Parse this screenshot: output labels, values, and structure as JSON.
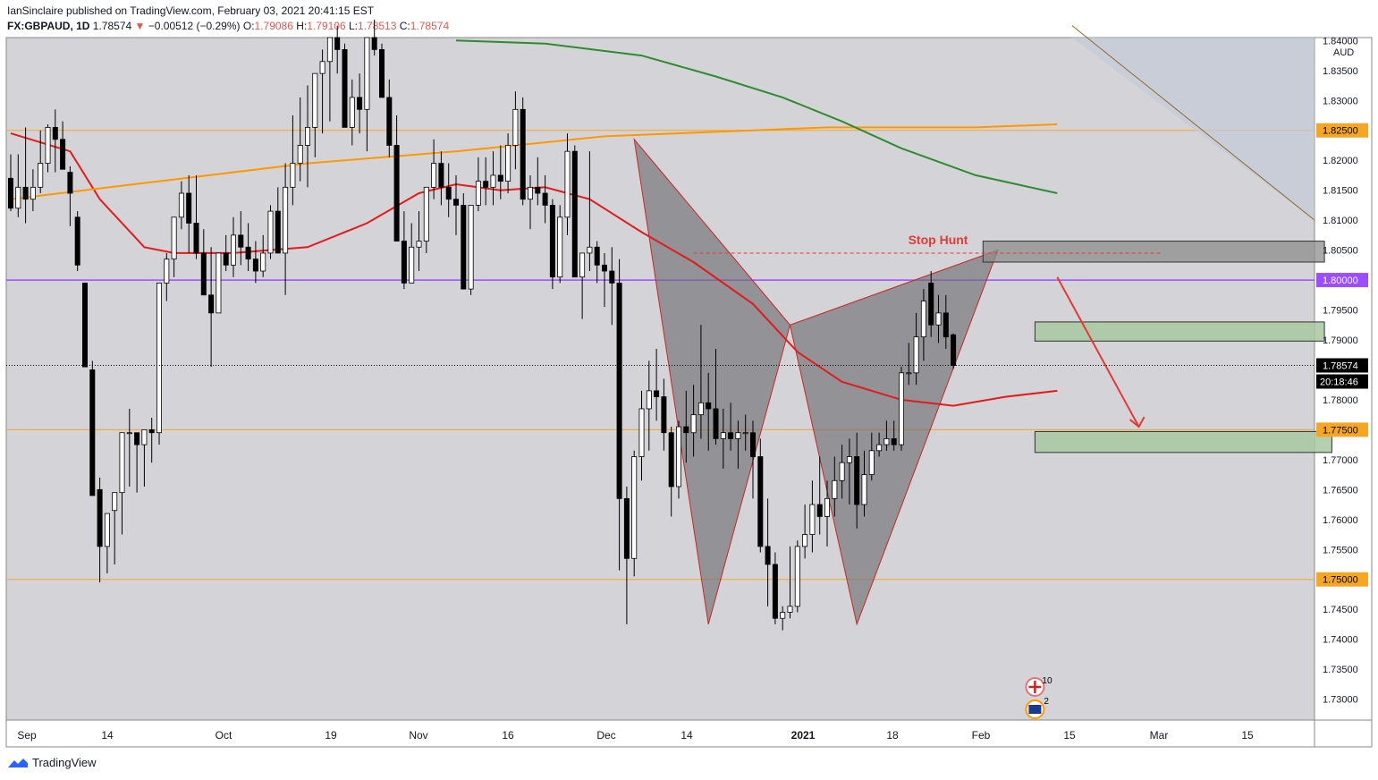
{
  "header": {
    "publisher": "IanSinclaire published on TradingView.com, February 03, 2021 20:41:15 EST",
    "symbol": "FX:GBPAUD, 1D",
    "last": "1.78574",
    "arrow": "▼",
    "change": "−0.00512 (−0.29%)",
    "ohlc": {
      "o_label": "O:",
      "o": "1.79086",
      "h_label": "H:",
      "h": "1.79106",
      "l_label": "L:",
      "l": "1.78513",
      "c_label": "C:",
      "c": "1.78574"
    }
  },
  "footer": {
    "brand": "TradingView"
  },
  "colors": {
    "background": "#d4d4d8",
    "up_candle": "#ffffff",
    "down_candle": "#000000",
    "ma_red": "#e31b1b",
    "ma_orange": "#ff9800",
    "ma_green": "#2e8b2e",
    "level_orange": "#f5a623",
    "level_purple": "#9c4dff",
    "pattern_fill": "#6e6e74",
    "zone_green": "#a8c8a0",
    "zone_grey": "#8e8e8e"
  },
  "chart_data": {
    "type": "candlestick",
    "symbol": "FX:GBPAUD",
    "timeframe": "1D",
    "currency_label": "AUD",
    "x_ticks": [
      "Sep",
      "14",
      "Oct",
      "19",
      "Nov",
      "16",
      "Dec",
      "14",
      "2021",
      "18",
      "Feb",
      "15",
      "Mar",
      "15"
    ],
    "y_ticks": [
      "1.84000",
      "1.83500",
      "1.83000",
      "1.82500",
      "1.82000",
      "1.81500",
      "1.81000",
      "1.80500",
      "1.80000",
      "1.79500",
      "1.79000",
      "1.78574",
      "1.78000",
      "1.77500",
      "1.77000",
      "1.76500",
      "1.76000",
      "1.75500",
      "1.75000",
      "1.74500",
      "1.74000",
      "1.73500",
      "1.73000"
    ],
    "y_range": [
      1.7265,
      1.8405
    ],
    "highlighted_levels": [
      {
        "label": "1.82500",
        "value": 1.825,
        "color": "orange"
      },
      {
        "label": "1.80000",
        "value": 1.8,
        "color": "purple"
      },
      {
        "label": "1.77500",
        "value": 1.775,
        "color": "orange"
      },
      {
        "label": "1.75000",
        "value": 1.75,
        "color": "orange"
      }
    ],
    "current_price": "1.78574",
    "countdown": "20:18:46",
    "annotation": "Stop Hunt",
    "candles_ohlc": [
      [
        1.817,
        1.821,
        1.8115,
        1.812
      ],
      [
        1.812,
        1.821,
        1.8105,
        1.8155
      ],
      [
        1.8155,
        1.8255,
        1.8095,
        1.8135
      ],
      [
        1.8135,
        1.8185,
        1.8115,
        1.8155
      ],
      [
        1.8155,
        1.825,
        1.8145,
        1.8195
      ],
      [
        1.8195,
        1.826,
        1.818,
        1.8255
      ],
      [
        1.8255,
        1.8285,
        1.818,
        1.8235
      ],
      [
        1.8235,
        1.8265,
        1.8185,
        1.8185
      ],
      [
        1.818,
        1.819,
        1.809,
        1.8145
      ],
      [
        1.8105,
        1.8115,
        1.8015,
        1.8025
      ],
      [
        1.7995,
        1.7945,
        1.7855,
        1.7855
      ],
      [
        1.785,
        1.7865,
        1.7735,
        1.764
      ],
      [
        1.765,
        1.767,
        1.7495,
        1.7555
      ],
      [
        1.7555,
        1.7605,
        1.751,
        1.761
      ],
      [
        1.7615,
        1.7645,
        1.7525,
        1.7645
      ],
      [
        1.7645,
        1.7705,
        1.7575,
        1.7745
      ],
      [
        1.7745,
        1.7785,
        1.7655,
        1.7745
      ],
      [
        1.7745,
        1.7735,
        1.7645,
        1.7725
      ],
      [
        1.7725,
        1.7735,
        1.7655,
        1.775
      ],
      [
        1.775,
        1.777,
        1.7695,
        1.7745
      ],
      [
        1.7745,
        1.7765,
        1.7725,
        1.7995
      ],
      [
        1.7995,
        1.8045,
        1.7965,
        1.8035
      ],
      [
        1.8035,
        1.8095,
        1.8005,
        1.8105
      ],
      [
        1.8105,
        1.8165,
        1.8085,
        1.8145
      ],
      [
        1.8145,
        1.8175,
        1.8045,
        1.8095
      ],
      [
        1.8095,
        1.8175,
        1.8035,
        1.8045
      ],
      [
        1.8045,
        1.8085,
        1.7975,
        1.7975
      ],
      [
        1.7975,
        1.8055,
        1.7855,
        1.7945
      ],
      [
        1.7945,
        1.8045,
        1.7945,
        1.8045
      ],
      [
        1.8045,
        1.8075,
        1.8015,
        1.8025
      ],
      [
        1.8025,
        1.8105,
        1.8005,
        1.8075
      ],
      [
        1.8075,
        1.8115,
        1.8025,
        1.8055
      ],
      [
        1.8055,
        1.8095,
        1.8015,
        1.8035
      ],
      [
        1.8035,
        1.8065,
        1.7995,
        1.8015
      ],
      [
        1.8015,
        1.8075,
        1.8005,
        1.8045
      ],
      [
        1.8045,
        1.8125,
        1.8035,
        1.8115
      ],
      [
        1.8115,
        1.8155,
        1.8045,
        1.8045
      ],
      [
        1.8045,
        1.8195,
        1.7975,
        1.8155
      ],
      [
        1.8155,
        1.8275,
        1.8125,
        1.8195
      ],
      [
        1.8195,
        1.8305,
        1.8165,
        1.8225
      ],
      [
        1.8225,
        1.8325,
        1.8155,
        1.8255
      ],
      [
        1.8255,
        1.8345,
        1.8205,
        1.8345
      ],
      [
        1.8345,
        1.8385,
        1.8245,
        1.8365
      ],
      [
        1.8365,
        1.8405,
        1.8265,
        1.8405
      ],
      [
        1.8405,
        1.8425,
        1.8345,
        1.8385
      ],
      [
        1.8385,
        1.8395,
        1.8255,
        1.8255
      ],
      [
        1.8255,
        1.8335,
        1.8225,
        1.8305
      ],
      [
        1.8305,
        1.8345,
        1.8245,
        1.8285
      ],
      [
        1.8285,
        1.8405,
        1.8215,
        1.8405
      ],
      [
        1.8405,
        1.8435,
        1.8375,
        1.8385
      ],
      [
        1.8385,
        1.8395,
        1.8305,
        1.8305
      ],
      [
        1.8305,
        1.8335,
        1.8205,
        1.8225
      ],
      [
        1.8225,
        1.8275,
        1.8065,
        1.8065
      ],
      [
        1.8065,
        1.8115,
        1.7985,
        1.7995
      ],
      [
        1.7995,
        1.8095,
        1.7995,
        1.8055
      ],
      [
        1.8055,
        1.8115,
        1.8015,
        1.8065
      ],
      [
        1.8065,
        1.8135,
        1.8045,
        1.8155
      ],
      [
        1.8155,
        1.8235,
        1.8135,
        1.8195
      ],
      [
        1.8195,
        1.8215,
        1.8125,
        1.8155
      ],
      [
        1.8155,
        1.8195,
        1.8105,
        1.8135
      ],
      [
        1.8135,
        1.8175,
        1.8075,
        1.8125
      ],
      [
        1.8125,
        1.8145,
        1.7985,
        1.7985
      ],
      [
        1.7985,
        1.8065,
        1.7975,
        1.8125
      ],
      [
        1.8125,
        1.8205,
        1.8115,
        1.8165
      ],
      [
        1.8165,
        1.8205,
        1.8125,
        1.8155
      ],
      [
        1.8155,
        1.8215,
        1.8125,
        1.8175
      ],
      [
        1.8175,
        1.8225,
        1.8135,
        1.8165
      ],
      [
        1.8165,
        1.8245,
        1.8145,
        1.8225
      ],
      [
        1.8225,
        1.8315,
        1.8185,
        1.8285
      ],
      [
        1.8285,
        1.8305,
        1.8125,
        1.8135
      ],
      [
        1.8135,
        1.8175,
        1.8085,
        1.8155
      ],
      [
        1.8155,
        1.8205,
        1.8125,
        1.8145
      ],
      [
        1.8145,
        1.8175,
        1.8095,
        1.8125
      ],
      [
        1.8125,
        1.8135,
        1.7985,
        1.8005
      ],
      [
        1.8005,
        1.8125,
        1.7995,
        1.8105
      ],
      [
        1.8105,
        1.8245,
        1.8075,
        1.8215
      ],
      [
        1.8215,
        1.8225,
        1.8005,
        1.8005
      ],
      [
        1.8005,
        1.8045,
        1.7935,
        1.8045
      ],
      [
        1.8045,
        1.8215,
        1.8015,
        1.8055
      ],
      [
        1.8055,
        1.8065,
        1.7995,
        1.8025
      ],
      [
        1.8025,
        1.8045,
        1.7955,
        1.8015
      ],
      [
        1.8015,
        1.8055,
        1.7925,
        1.7995
      ],
      [
        1.7995,
        1.8035,
        1.7515,
        1.7635
      ],
      [
        1.7635,
        1.7655,
        1.7425,
        1.7535
      ],
      [
        1.7535,
        1.7715,
        1.7505,
        1.7705
      ],
      [
        1.7705,
        1.7815,
        1.7665,
        1.7785
      ],
      [
        1.7785,
        1.7865,
        1.7715,
        1.7815
      ],
      [
        1.7815,
        1.7885,
        1.7765,
        1.7805
      ],
      [
        1.7805,
        1.7835,
        1.7715,
        1.7745
      ],
      [
        1.7745,
        1.7755,
        1.7605,
        1.7655
      ],
      [
        1.7655,
        1.7765,
        1.7635,
        1.7755
      ],
      [
        1.7755,
        1.7815,
        1.7695,
        1.7745
      ],
      [
        1.7745,
        1.7825,
        1.7705,
        1.7775
      ],
      [
        1.7775,
        1.7925,
        1.7735,
        1.7795
      ],
      [
        1.7795,
        1.7845,
        1.7715,
        1.7785
      ],
      [
        1.7785,
        1.7885,
        1.7725,
        1.7735
      ],
      [
        1.7735,
        1.7785,
        1.7685,
        1.7745
      ],
      [
        1.7745,
        1.7795,
        1.7715,
        1.7735
      ],
      [
        1.7735,
        1.7765,
        1.7685,
        1.7745
      ],
      [
        1.7745,
        1.7775,
        1.7715,
        1.7745
      ],
      [
        1.7745,
        1.7765,
        1.7635,
        1.7705
      ],
      [
        1.7705,
        1.7735,
        1.7545,
        1.7555
      ],
      [
        1.7555,
        1.7635,
        1.7455,
        1.7525
      ],
      [
        1.7525,
        1.7545,
        1.7425,
        1.7435
      ],
      [
        1.7435,
        1.7455,
        1.7415,
        1.7445
      ],
      [
        1.7445,
        1.7555,
        1.7435,
        1.7455
      ],
      [
        1.7455,
        1.7565,
        1.7445,
        1.7555
      ],
      [
        1.7555,
        1.7625,
        1.7535,
        1.7575
      ],
      [
        1.7575,
        1.7665,
        1.7545,
        1.7625
      ],
      [
        1.7625,
        1.7705,
        1.7575,
        1.7605
      ],
      [
        1.7605,
        1.7665,
        1.7555,
        1.7635
      ],
      [
        1.7635,
        1.7705,
        1.7605,
        1.7665
      ],
      [
        1.7665,
        1.7725,
        1.7635,
        1.7695
      ],
      [
        1.7695,
        1.7735,
        1.7625,
        1.7705
      ],
      [
        1.7705,
        1.7745,
        1.7585,
        1.7625
      ],
      [
        1.7625,
        1.7715,
        1.7605,
        1.7675
      ],
      [
        1.7675,
        1.7745,
        1.7665,
        1.7715
      ],
      [
        1.7715,
        1.7745,
        1.7705,
        1.7725
      ],
      [
        1.7725,
        1.7765,
        1.7715,
        1.7735
      ],
      [
        1.7735,
        1.7765,
        1.7715,
        1.7725
      ],
      [
        1.7725,
        1.7855,
        1.7715,
        1.7845
      ],
      [
        1.7845,
        1.7895,
        1.7825,
        1.7845
      ],
      [
        1.7845,
        1.7945,
        1.7825,
        1.7905
      ],
      [
        1.7905,
        1.7985,
        1.7865,
        1.7965
      ],
      [
        1.7995,
        1.8015,
        1.7905,
        1.7925
      ],
      [
        1.7925,
        1.7975,
        1.7895,
        1.7945
      ],
      [
        1.7945,
        1.7975,
        1.7885,
        1.7905
      ],
      [
        1.79086,
        1.79106,
        1.78513,
        1.78574
      ]
    ],
    "moving_averages": [
      {
        "color": "red",
        "points": [
          [
            0,
            1.8245
          ],
          [
            8,
            1.8215
          ],
          [
            12,
            1.8135
          ],
          [
            18,
            1.8055
          ],
          [
            22,
            1.8045
          ],
          [
            30,
            1.8045
          ],
          [
            40,
            1.8055
          ],
          [
            48,
            1.8095
          ],
          [
            55,
            1.8145
          ],
          [
            60,
            1.816
          ],
          [
            66,
            1.815
          ],
          [
            72,
            1.8155
          ],
          [
            78,
            1.8135
          ],
          [
            85,
            1.808
          ],
          [
            92,
            1.803
          ],
          [
            100,
            1.796
          ],
          [
            106,
            1.788
          ],
          [
            112,
            1.783
          ],
          [
            120,
            1.78
          ],
          [
            127,
            1.779
          ],
          [
            134,
            1.7805
          ],
          [
            141,
            1.7815
          ]
        ]
      },
      {
        "color": "orange",
        "points": [
          [
            0,
            1.8135
          ],
          [
            20,
            1.8165
          ],
          [
            40,
            1.8195
          ],
          [
            60,
            1.8215
          ],
          [
            80,
            1.824
          ],
          [
            100,
            1.825
          ],
          [
            110,
            1.8255
          ],
          [
            120,
            1.8255
          ],
          [
            130,
            1.8255
          ],
          [
            141,
            1.826
          ]
        ]
      },
      {
        "color": "green",
        "points": [
          [
            60,
            1.84
          ],
          [
            72,
            1.8395
          ],
          [
            85,
            1.8375
          ],
          [
            95,
            1.834
          ],
          [
            104,
            1.8305
          ],
          [
            112,
            1.8265
          ],
          [
            120,
            1.822
          ],
          [
            130,
            1.8175
          ],
          [
            141,
            1.8145
          ]
        ]
      }
    ],
    "pattern_points": [
      [
        84,
        1.8235
      ],
      [
        94,
        1.7425
      ],
      [
        105,
        1.7925
      ],
      [
        114,
        1.7425
      ],
      [
        133,
        1.805
      ]
    ],
    "stop_hunt_line": {
      "x_start": 92,
      "x_end": 155,
      "y": 1.8045
    },
    "zones": [
      {
        "type": "grey",
        "x_start": 131,
        "x_end": 177,
        "y_top": 1.8065,
        "y_bottom": 1.803
      },
      {
        "type": "green",
        "x_start": 138,
        "x_end": 177,
        "y_top": 1.793,
        "y_bottom": 1.7898
      },
      {
        "type": "green",
        "x_start": 138,
        "x_end": 178,
        "y_top": 1.7747,
        "y_bottom": 1.7712
      }
    ],
    "arrow": {
      "from": [
        141,
        1.8005
      ],
      "to": [
        152,
        1.7755
      ]
    },
    "trendline": {
      "from": [
        143,
        1.8425
      ],
      "to": [
        183,
        1.81
      ]
    },
    "event_badges": [
      "10",
      "2"
    ]
  }
}
